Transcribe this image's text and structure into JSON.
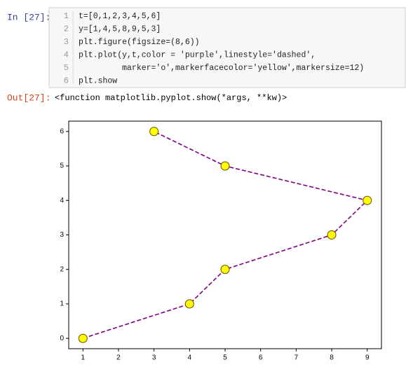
{
  "cell": {
    "in_prompt": "In [27]:",
    "code": [
      {
        "number": 1,
        "text": "t=[0,1,2,3,4,5,6]"
      },
      {
        "number": 2,
        "text": "y=[1,4,5,8,9,5,3]"
      },
      {
        "number": 3,
        "text": "plt.figure(figsize=(8,6))"
      },
      {
        "number": 4,
        "text": "plt.plot(y,t,color = 'purple',linestyle='dashed',"
      },
      {
        "number": 5,
        "text": "         marker='o',markerfacecolor='yellow',markersize=12)"
      },
      {
        "number": 6,
        "text": "plt.show"
      }
    ],
    "out_prompt": "Out[27]:",
    "output": "<function matplotlib.pyplot.show(*args, **kw)>"
  },
  "chart_data": {
    "type": "line",
    "x": [
      1,
      4,
      5,
      8,
      9,
      5,
      3
    ],
    "y": [
      0,
      1,
      2,
      3,
      4,
      5,
      6
    ],
    "color": "purple",
    "linestyle": "dashed",
    "marker_face_color": "yellow",
    "xlim": [
      0.6,
      9.4
    ],
    "xticks": [
      1,
      2,
      3,
      4,
      5,
      6,
      7,
      8,
      9
    ],
    "ylim": [
      -0.3,
      6.3
    ],
    "yticks": [
      0,
      1,
      2,
      3,
      4,
      5,
      6
    ]
  }
}
